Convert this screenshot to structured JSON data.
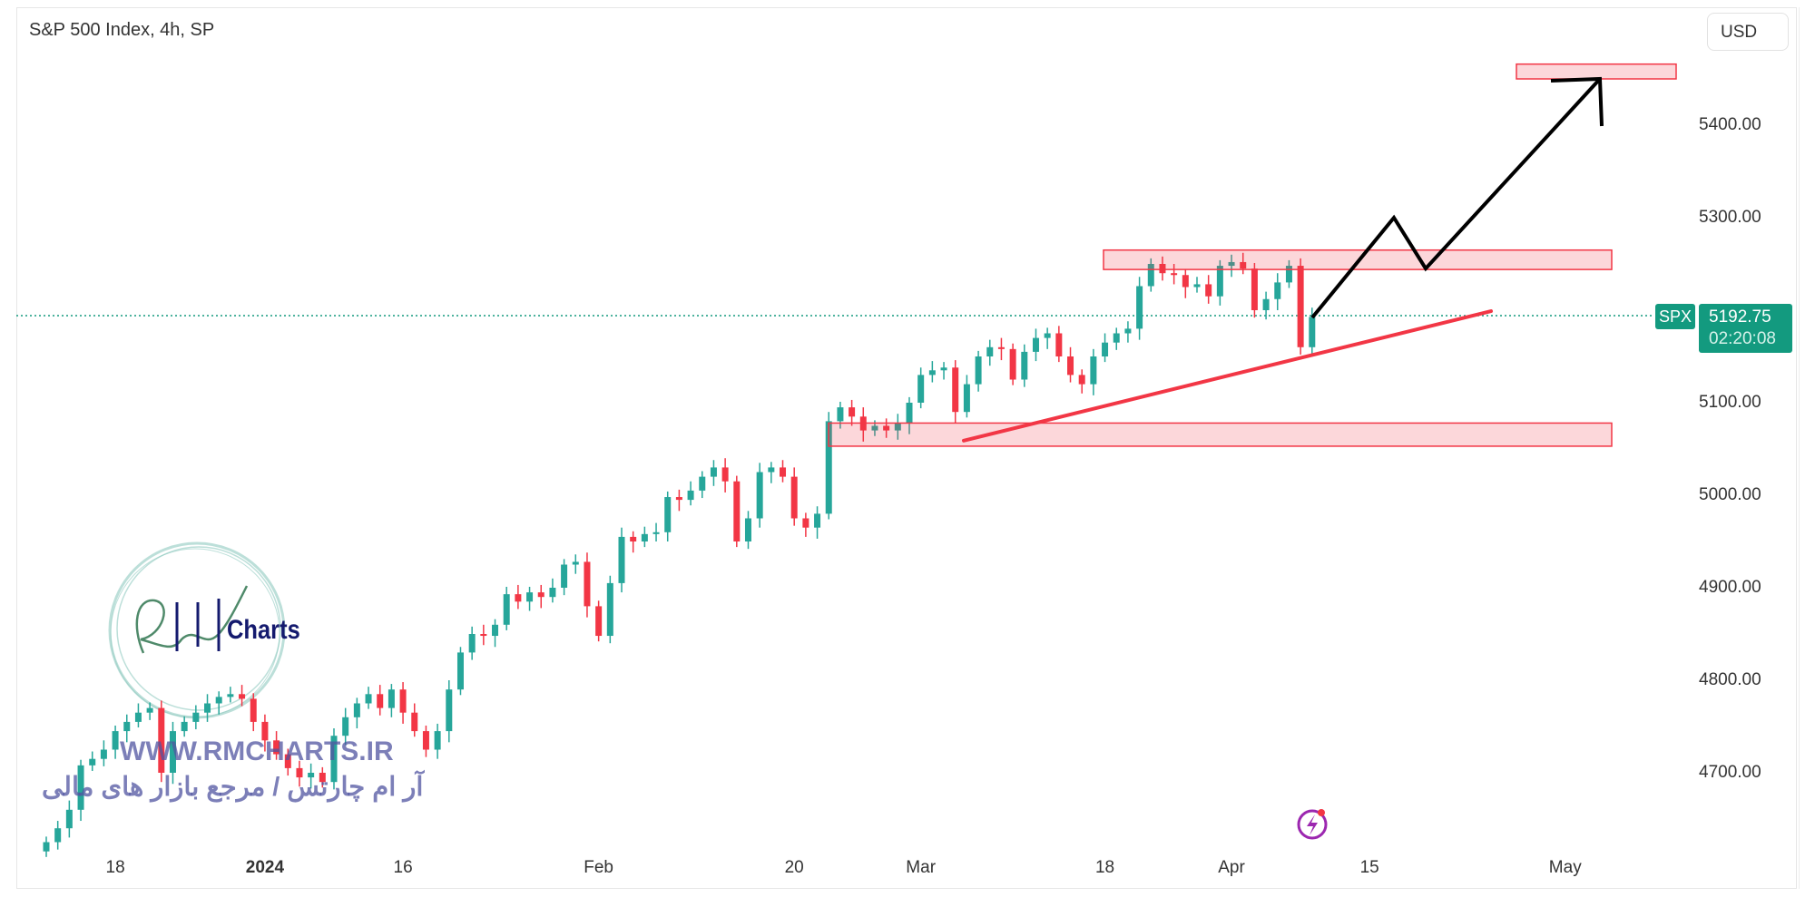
{
  "header": {
    "title": "S&P 500 Index, 4h, SP",
    "currency": "USD"
  },
  "price_label": {
    "symbol": "SPX",
    "price": "5192.75",
    "countdown": "02:20:08"
  },
  "watermark": {
    "url": "WWW.RMCHARTS.IR",
    "persian": "آر ام چارتس / مرجع بازار های مالی",
    "logo_text": "Charts"
  },
  "icons": {
    "event": "lightning-bolt-icon"
  },
  "colors": {
    "up": "#26a69a",
    "down": "#f23645",
    "accent": "#139a7f",
    "zone": "#f23645",
    "trendline": "#f23645",
    "projection": "#000000",
    "event": "#9c27b0"
  },
  "chart_data": {
    "type": "candlestick",
    "title": "S&P 500 Index, 4h, SP",
    "yaxis_ticks": [
      "5400.00",
      "5300.00",
      "5100.00",
      "5000.00",
      "4900.00",
      "4800.00",
      "4700.00"
    ],
    "ylim": [
      4630,
      5500
    ],
    "xaxis_ticks": [
      {
        "label": "18",
        "bar": 6
      },
      {
        "label": "2024",
        "bar": 19,
        "bold": true
      },
      {
        "label": "16",
        "bar": 31
      },
      {
        "label": "Feb",
        "bar": 48
      },
      {
        "label": "20",
        "bar": 65
      },
      {
        "label": "Mar",
        "bar": 76
      },
      {
        "label": "18",
        "bar": 92
      },
      {
        "label": "Apr",
        "bar": 103
      },
      {
        "label": "15",
        "bar": 115
      },
      {
        "label": "May",
        "bar": 132
      }
    ],
    "grid": false,
    "first_open": 4615,
    "closes": [
      4625,
      4640,
      4660,
      4708,
      4715,
      4725,
      4745,
      4755,
      4765,
      4770,
      4700,
      4745,
      4755,
      4765,
      4775,
      4782,
      4785,
      4780,
      4755,
      4735,
      4720,
      4705,
      4695,
      4700,
      4690,
      4740,
      4760,
      4775,
      4785,
      4770,
      4790,
      4765,
      4745,
      4725,
      4745,
      4790,
      4830,
      4850,
      4848,
      4860,
      4893,
      4885,
      4895,
      4890,
      4900,
      4925,
      4928,
      4880,
      4848,
      4905,
      4955,
      4950,
      4958,
      4960,
      4998,
      4995,
      5005,
      5020,
      5030,
      5015,
      4950,
      4975,
      5025,
      5030,
      5020,
      4975,
      4965,
      4980,
      5080,
      5095,
      5085,
      5070,
      5075,
      5070,
      5078,
      5100,
      5130,
      5135,
      5138,
      5090,
      5120,
      5150,
      5160,
      5158,
      5125,
      5155,
      5170,
      5175,
      5150,
      5130,
      5120,
      5150,
      5165,
      5175,
      5180,
      5226,
      5250,
      5240,
      5238,
      5225,
      5228,
      5215,
      5248,
      5252,
      5245,
      5200,
      5212,
      5230,
      5248,
      5160,
      5192.75
    ],
    "last_price": 5192.75,
    "annotations": {
      "zones": [
        {
          "from": 5450,
          "to": 5466
        },
        {
          "from": 5244,
          "to": 5265
        },
        {
          "from": 5053,
          "to": 5078
        }
      ],
      "trendline": {
        "from": 5059,
        "to": 5199
      },
      "projection_path": [
        5192,
        5300,
        5245,
        5450
      ]
    }
  }
}
